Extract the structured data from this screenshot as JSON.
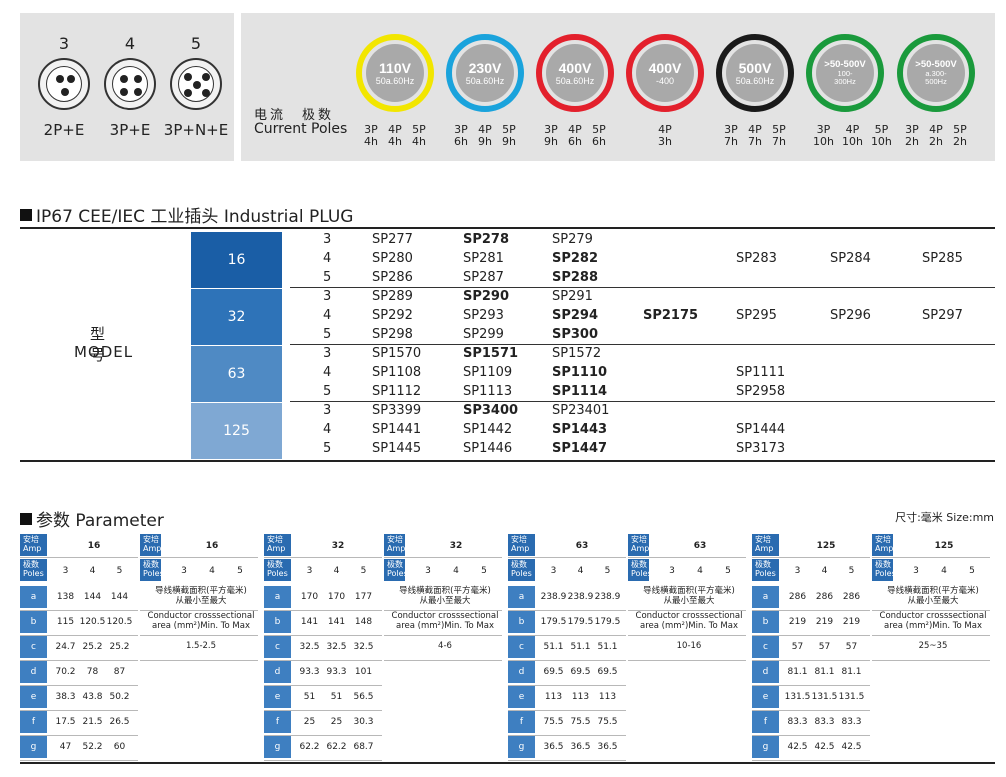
{
  "sockets": [
    {
      "number": "3",
      "label": "2P+E"
    },
    {
      "number": "4",
      "label": "3P+E"
    },
    {
      "number": "5",
      "label": "3P+N+E"
    }
  ],
  "current_label_zh": "电流　极数",
  "current_label_en": "Current Poles",
  "voltages": [
    {
      "v": "110V",
      "f": "50a.60Hz",
      "ring": "#f2e600",
      "core": "#a9a9a9",
      "poles": [
        "3P",
        "4P",
        "5P"
      ],
      "hours": [
        "4h",
        "4h",
        "4h"
      ]
    },
    {
      "v": "230V",
      "f": "50a.60Hz",
      "ring": "#1aa3dc",
      "core": "#a9a9a9",
      "poles": [
        "3P",
        "4P",
        "5P"
      ],
      "hours": [
        "6h",
        "9h",
        "9h"
      ]
    },
    {
      "v": "400V",
      "f": "50a.60Hz",
      "ring": "#e3202c",
      "core": "#a9a9a9",
      "poles": [
        "3P",
        "4P",
        "5P"
      ],
      "hours": [
        "9h",
        "6h",
        "6h"
      ]
    },
    {
      "v": "400V",
      "f": "-400",
      "ring": "#e3202c",
      "core": "#a9a9a9",
      "poles": [
        "4P"
      ],
      "hours": [
        "3h"
      ]
    },
    {
      "v": "500V",
      "f": "50a.60Hz",
      "ring": "#1a1a1a",
      "core": "#a9a9a9",
      "poles": [
        "3P",
        "4P",
        "5P"
      ],
      "hours": [
        "7h",
        "7h",
        "7h"
      ]
    },
    {
      "v": ">50-500V",
      "f": "100-\n300Hz",
      "ring": "#1a9a3c",
      "core": "#a9a9a9",
      "poles": [
        "3P",
        "4P",
        "5P"
      ],
      "hours": [
        "10h",
        "10h",
        "10h"
      ]
    },
    {
      "v": ">50-500V",
      "f": "a.300-\n500Hz",
      "ring": "#1a9a3c",
      "core": "#a9a9a9",
      "poles": [
        "3P",
        "4P",
        "5P"
      ],
      "hours": [
        "2h",
        "2h",
        "2h"
      ]
    }
  ],
  "plug_section_title": "IP67 CEE/IEC 工业插头 Industrial PLUG",
  "model_label_zh": "型号",
  "model_label_en": "MODEL",
  "model_groups": [
    {
      "amp": "16",
      "color": "#1a5ea6",
      "rows": [
        {
          "p": "3",
          "a": "SP277",
          "b": "SP278",
          "c": "SP279",
          "d": "",
          "e": "",
          "f": "",
          "g": ""
        },
        {
          "p": "4",
          "a": "SP280",
          "b": "SP281",
          "c": "SP282",
          "d": "",
          "e": "SP283",
          "f": "SP284",
          "g": "SP285"
        },
        {
          "p": "5",
          "a": "SP286",
          "b": "SP287",
          "c": "SP288",
          "d": "",
          "e": "",
          "f": "",
          "g": ""
        }
      ]
    },
    {
      "amp": "32",
      "color": "#2e73b8",
      "rows": [
        {
          "p": "3",
          "a": "SP289",
          "b": "SP290",
          "c": "SP291",
          "d": "",
          "e": "",
          "f": "",
          "g": ""
        },
        {
          "p": "4",
          "a": "SP292",
          "b": "SP293",
          "c": "SP294",
          "d": "SP2175",
          "e": "SP295",
          "f": "SP296",
          "g": "SP297"
        },
        {
          "p": "5",
          "a": "SP298",
          "b": "SP299",
          "c": "SP300",
          "d": "",
          "e": "",
          "f": "",
          "g": ""
        }
      ]
    },
    {
      "amp": "63",
      "color": "#4f8ac4",
      "rows": [
        {
          "p": "3",
          "a": "SP1570",
          "b": "SP1571",
          "c": "SP1572",
          "d": "",
          "e": "",
          "f": "",
          "g": ""
        },
        {
          "p": "4",
          "a": "SP1108",
          "b": "SP1109",
          "c": "SP1110",
          "d": "",
          "e": "SP1111",
          "f": "",
          "g": ""
        },
        {
          "p": "5",
          "a": "SP1112",
          "b": "SP1113",
          "c": "SP1114",
          "d": "",
          "e": "SP2958",
          "f": "",
          "g": ""
        }
      ]
    },
    {
      "amp": "125",
      "color": "#7fa8d3",
      "rows": [
        {
          "p": "3",
          "a": "SP3399",
          "b": "SP3400",
          "c": "SP23401",
          "d": "",
          "e": "",
          "f": "",
          "g": ""
        },
        {
          "p": "4",
          "a": "SP1441",
          "b": "SP1442",
          "c": "SP1443",
          "d": "",
          "e": "SP1444",
          "f": "",
          "g": ""
        },
        {
          "p": "5",
          "a": "SP1445",
          "b": "SP1446",
          "c": "SP1447",
          "d": "",
          "e": "SP3173",
          "f": "",
          "g": ""
        }
      ]
    }
  ],
  "param_section_title": "参数 Parameter",
  "size_note": "尺寸:毫米 Size:mm",
  "param_header": {
    "amp_label": "安培\nAmp",
    "poles_label": "极数\nPoles",
    "pole_values": [
      "3",
      "4",
      "5"
    ]
  },
  "conductor_zh": "导线横截面积(平方毫米)\n从最小至最大",
  "conductor_en": "Conductor crosssectional\narea (mm²)Min. To Max",
  "param_tables": [
    {
      "amp": "16",
      "range": "1.5-2.5",
      "rows": [
        {
          "k": "a",
          "v": [
            "138",
            "144",
            "144"
          ]
        },
        {
          "k": "b",
          "v": [
            "115",
            "120.5",
            "120.5"
          ]
        },
        {
          "k": "c",
          "v": [
            "24.7",
            "25.2",
            "25.2"
          ]
        },
        {
          "k": "d",
          "v": [
            "70.2",
            "78",
            "87"
          ]
        },
        {
          "k": "e",
          "v": [
            "38.3",
            "43.8",
            "50.2"
          ]
        },
        {
          "k": "f",
          "v": [
            "17.5",
            "21.5",
            "26.5"
          ]
        },
        {
          "k": "g",
          "v": [
            "47",
            "52.2",
            "60"
          ]
        }
      ]
    },
    {
      "amp": "32",
      "range": "4-6",
      "rows": [
        {
          "k": "a",
          "v": [
            "170",
            "170",
            "177"
          ]
        },
        {
          "k": "b",
          "v": [
            "141",
            "141",
            "148"
          ]
        },
        {
          "k": "c",
          "v": [
            "32.5",
            "32.5",
            "32.5"
          ]
        },
        {
          "k": "d",
          "v": [
            "93.3",
            "93.3",
            "101"
          ]
        },
        {
          "k": "e",
          "v": [
            "51",
            "51",
            "56.5"
          ]
        },
        {
          "k": "f",
          "v": [
            "25",
            "25",
            "30.3"
          ]
        },
        {
          "k": "g",
          "v": [
            "62.2",
            "62.2",
            "68.7"
          ]
        }
      ]
    },
    {
      "amp": "63",
      "range": "10-16",
      "rows": [
        {
          "k": "a",
          "v": [
            "238.9",
            "238.9",
            "238.9"
          ]
        },
        {
          "k": "b",
          "v": [
            "179.5",
            "179.5",
            "179.5"
          ]
        },
        {
          "k": "c",
          "v": [
            "51.1",
            "51.1",
            "51.1"
          ]
        },
        {
          "k": "d",
          "v": [
            "69.5",
            "69.5",
            "69.5"
          ]
        },
        {
          "k": "e",
          "v": [
            "113",
            "113",
            "113"
          ]
        },
        {
          "k": "f",
          "v": [
            "75.5",
            "75.5",
            "75.5"
          ]
        },
        {
          "k": "g",
          "v": [
            "36.5",
            "36.5",
            "36.5"
          ]
        }
      ]
    },
    {
      "amp": "125",
      "range": "25~35",
      "rows": [
        {
          "k": "a",
          "v": [
            "286",
            "286",
            "286"
          ]
        },
        {
          "k": "b",
          "v": [
            "219",
            "219",
            "219"
          ]
        },
        {
          "k": "c",
          "v": [
            "57",
            "57",
            "57"
          ]
        },
        {
          "k": "d",
          "v": [
            "81.1",
            "81.1",
            "81.1"
          ]
        },
        {
          "k": "e",
          "v": [
            "131.5",
            "131.5",
            "131.5"
          ]
        },
        {
          "k": "f",
          "v": [
            "83.3",
            "83.3",
            "83.3"
          ]
        },
        {
          "k": "g",
          "v": [
            "42.5",
            "42.5",
            "42.5"
          ]
        }
      ]
    }
  ]
}
